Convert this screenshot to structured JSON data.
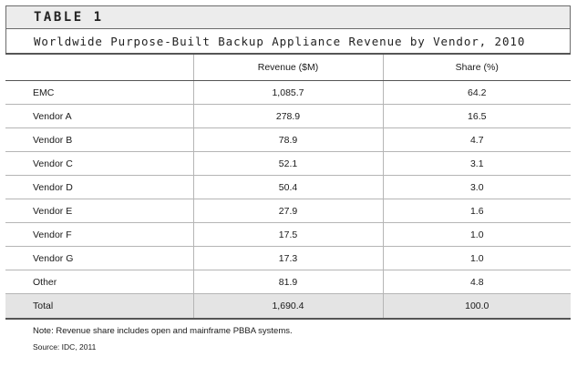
{
  "table_label": "TABLE 1",
  "caption": "Worldwide Purpose-Built Backup Appliance Revenue by Vendor, 2010",
  "columns": [
    "",
    "Revenue ($M)",
    "Share (%)"
  ],
  "rows": [
    {
      "vendor": "EMC",
      "revenue": "1,085.7",
      "share": "64.2"
    },
    {
      "vendor": "Vendor A",
      "revenue": "278.9",
      "share": "16.5"
    },
    {
      "vendor": "Vendor B",
      "revenue": "78.9",
      "share": "4.7"
    },
    {
      "vendor": "Vendor C",
      "revenue": "52.1",
      "share": "3.1"
    },
    {
      "vendor": "Vendor D",
      "revenue": "50.4",
      "share": "3.0"
    },
    {
      "vendor": "Vendor E",
      "revenue": "27.9",
      "share": "1.6"
    },
    {
      "vendor": "Vendor F",
      "revenue": "17.5",
      "share": "1.0"
    },
    {
      "vendor": "Vendor G",
      "revenue": "17.3",
      "share": "1.0"
    },
    {
      "vendor": "Other",
      "revenue": "81.9",
      "share": "4.8"
    }
  ],
  "total": {
    "vendor": "Total",
    "revenue": "1,690.4",
    "share": "100.0"
  },
  "note": "Note: Revenue share includes open and mainframe PBBA systems.",
  "source": "Source: IDC, 2011",
  "colors": {
    "label_bar_bg": "#ececec",
    "total_row_bg": "#e4e4e4",
    "rule": "#555555",
    "grid": "#b5b5b5"
  }
}
